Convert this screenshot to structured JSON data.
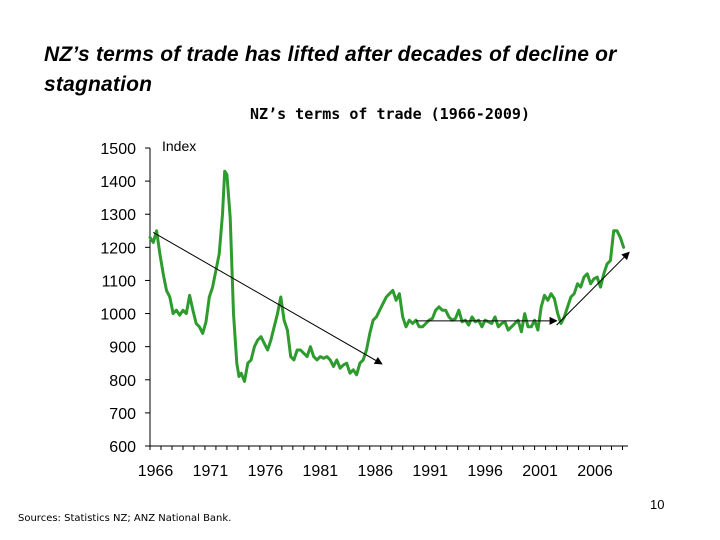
{
  "slide": {
    "title": "NZ’s terms of trade has lifted after decades of decline or stagnation",
    "sources": "Sources:  Statistics NZ; ANZ National Bank.",
    "page_number": "10"
  },
  "colors": {
    "series": "#2e9b2e",
    "axis": "#000000",
    "arrow": "#000000"
  },
  "chart_data": {
    "type": "line",
    "title": "NZ’s terms of trade (1966-2009)",
    "ylabel": "Index",
    "xlabel": "",
    "ylim": [
      600,
      1500
    ],
    "xlim": [
      1966,
      2009.5
    ],
    "grid": false,
    "legend": "none",
    "y_ticks": [
      1500,
      1400,
      1300,
      1200,
      1100,
      1000,
      900,
      800,
      700,
      600
    ],
    "x_ticks": [
      "1966",
      "1971",
      "1976",
      "1981",
      "1986",
      "1991",
      "1996",
      "2001",
      "2006"
    ],
    "series": [
      {
        "x": [
          1966.0,
          1966.3,
          1966.6,
          1966.9,
          1967.2,
          1967.5,
          1967.8,
          1968.1,
          1968.4,
          1968.7,
          1969.0,
          1969.3,
          1969.6,
          1969.9,
          1970.2,
          1970.5,
          1970.8,
          1971.1,
          1971.4,
          1971.7,
          1972.0,
          1972.3,
          1972.6,
          1972.8,
          1973.0,
          1973.3,
          1973.6,
          1973.9,
          1974.1,
          1974.3,
          1974.6,
          1974.9,
          1975.2,
          1975.5,
          1975.8,
          1976.1,
          1976.4,
          1976.7,
          1977.0,
          1977.3,
          1977.6,
          1977.9,
          1978.2,
          1978.5,
          1978.8,
          1979.1,
          1979.4,
          1979.7,
          1980.0,
          1980.3,
          1980.6,
          1980.9,
          1981.2,
          1981.5,
          1981.8,
          1982.1,
          1982.4,
          1982.7,
          1983.0,
          1983.3,
          1983.6,
          1983.9,
          1984.2,
          1984.5,
          1984.8,
          1985.1,
          1985.4,
          1985.7,
          1986.0,
          1986.3,
          1986.6,
          1986.9,
          1987.2,
          1987.5,
          1987.8,
          1988.1,
          1988.4,
          1988.7,
          1989.0,
          1989.3,
          1989.6,
          1989.9,
          1990.2,
          1990.5,
          1990.8,
          1991.1,
          1991.4,
          1991.7,
          1992.0,
          1992.3,
          1992.6,
          1992.9,
          1993.2,
          1993.5,
          1993.8,
          1994.1,
          1994.4,
          1994.7,
          1995.0,
          1995.3,
          1995.6,
          1995.9,
          1996.2,
          1996.5,
          1996.8,
          1997.1,
          1997.4,
          1997.7,
          1998.0,
          1998.3,
          1998.6,
          1998.9,
          1999.2,
          1999.5,
          1999.8,
          2000.1,
          2000.4,
          2000.7,
          2001.0,
          2001.3,
          2001.6,
          2001.9,
          2002.2,
          2002.5,
          2002.8,
          2003.1,
          2003.4,
          2003.7,
          2004.0,
          2004.3,
          2004.6,
          2004.9,
          2005.2,
          2005.5,
          2005.8,
          2006.1,
          2006.4,
          2006.7,
          2007.0,
          2007.3,
          2007.6,
          2007.9,
          2008.2,
          2008.5,
          2008.8,
          2009.1
        ],
        "values": [
          1230,
          1215,
          1250,
          1180,
          1120,
          1070,
          1050,
          1000,
          1010,
          995,
          1010,
          1000,
          1055,
          1010,
          970,
          960,
          940,
          975,
          1050,
          1080,
          1130,
          1180,
          1300,
          1430,
          1420,
          1290,
          1000,
          850,
          810,
          820,
          795,
          850,
          860,
          900,
          920,
          930,
          910,
          890,
          920,
          960,
          1000,
          1050,
          980,
          950,
          870,
          860,
          890,
          890,
          880,
          870,
          900,
          870,
          860,
          870,
          865,
          870,
          860,
          840,
          860,
          835,
          845,
          850,
          820,
          830,
          815,
          850,
          860,
          890,
          940,
          980,
          990,
          1010,
          1030,
          1050,
          1060,
          1070,
          1040,
          1060,
          990,
          960,
          980,
          970,
          980,
          960,
          960,
          970,
          980,
          985,
          1010,
          1020,
          1010,
          1010,
          990,
          980,
          985,
          1010,
          975,
          980,
          965,
          990,
          975,
          980,
          960,
          980,
          975,
          970,
          990,
          960,
          970,
          975,
          950,
          960,
          970,
          980,
          945,
          1000,
          960,
          960,
          980,
          950,
          1020,
          1055,
          1040,
          1060,
          1045,
          1000,
          970,
          990,
          1020,
          1050,
          1060,
          1090,
          1080,
          1110,
          1120,
          1090,
          1105,
          1110,
          1080,
          1120,
          1150,
          1160,
          1250,
          1250,
          1230,
          1200
        ]
      }
    ],
    "annotations": [
      {
        "type": "arrow",
        "from": [
          1966.3,
          1245
        ],
        "to": [
          1987.1,
          848
        ]
      },
      {
        "type": "arrow",
        "from": [
          1990.2,
          978
        ],
        "to": [
          2003.0,
          978
        ]
      },
      {
        "type": "arrow",
        "from": [
          2003.0,
          965
        ],
        "to": [
          2009.6,
          1185
        ]
      }
    ]
  }
}
